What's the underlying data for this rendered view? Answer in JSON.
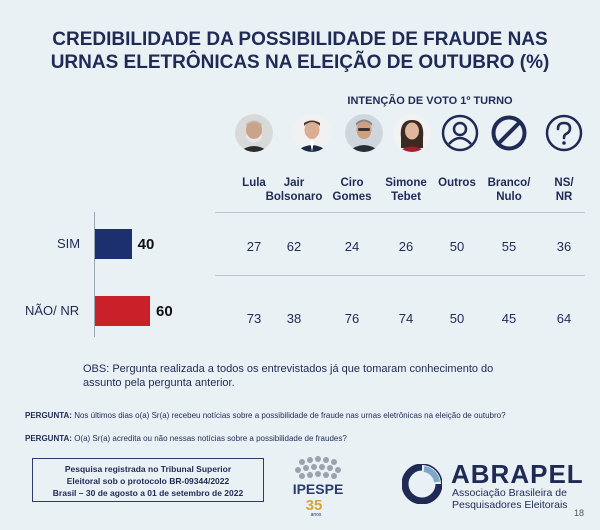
{
  "title_line1": "CREDIBILIDADE DA POSSIBILIDADE DE FRAUDE NAS",
  "title_line2": "URNAS ELETRÔNICAS NA ELEIÇÃO DE OUTUBRO (%)",
  "subtitle": "INTENÇÃO DE VOTO 1º TURNO",
  "colors": {
    "sim": "#1c2f6e",
    "nao": "#c9202a",
    "text": "#1f2a55"
  },
  "chart_data": {
    "type": "bar",
    "orientation": "horizontal",
    "categories": [
      "SIM",
      "NÃO/ NR"
    ],
    "values": [
      40,
      60
    ],
    "xlim": [
      0,
      100
    ],
    "bar_colors": [
      "#1c2f6e",
      "#c9202a"
    ]
  },
  "table": {
    "columns": [
      {
        "line1": "Lula",
        "line2": "",
        "icon": "lula-photo-icon"
      },
      {
        "line1": "Jair",
        "line2": "Bolsonaro",
        "icon": "bolsonaro-photo-icon"
      },
      {
        "line1": "Ciro",
        "line2": "Gomes",
        "icon": "ciro-photo-icon"
      },
      {
        "line1": "Simone",
        "line2": "Tebet",
        "icon": "tebet-photo-icon"
      },
      {
        "line1": "Outros",
        "line2": "",
        "icon": "person-icon"
      },
      {
        "line1": "Branco/",
        "line2": "Nulo",
        "icon": "prohibited-icon"
      },
      {
        "line1": "NS/",
        "line2": "NR",
        "icon": "question-icon"
      }
    ],
    "rows": [
      {
        "label": "SIM",
        "values": [
          "27",
          "62",
          "24",
          "26",
          "50",
          "55",
          "36"
        ]
      },
      {
        "label": "NÃO/ NR",
        "values": [
          "73",
          "38",
          "76",
          "74",
          "50",
          "45",
          "64"
        ]
      }
    ]
  },
  "obs": "OBS: Pergunta realizada a todos os entrevistados já que tomaram conhecimento do assunto pela pergunta anterior.",
  "question1_label": "PERGUNTA:",
  "question1_text": "Nos últimos dias o(a) Sr(a) recebeu notícias sobre a possibilidade de fraude nas urnas eletrônicas na eleição de outubro?",
  "question2_label": "PERGUNTA:",
  "question2_text": "O(a) Sr(a) acredita ou não nessas notícias sobre a possibilidade de fraudes?",
  "registration": {
    "line1": "Pesquisa registrada no Tribunal Superior",
    "line2": "Eleitoral sob o protocolo BR-09344/2022",
    "line3": "Brasil – 30 de agosto a 01 de setembro de 2022"
  },
  "ipespe": {
    "name": "IPESPE",
    "years": "35",
    "years_label": "anos"
  },
  "abrapel": {
    "name": "ABRAPEL",
    "sub1": "Associação Brasileira de",
    "sub2": "Pesquisadores Eleitorais"
  },
  "page_number": "18"
}
